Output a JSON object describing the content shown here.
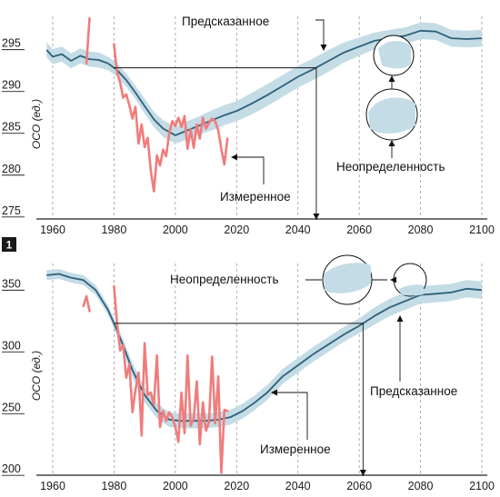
{
  "chart_data": [
    {
      "type": "line",
      "panel_label": "",
      "ylabel": "OCO (ед.)",
      "xlim": [
        1960,
        2100
      ],
      "ylim": [
        274,
        298
      ],
      "xticks": [
        1960,
        1980,
        2000,
        2020,
        2040,
        2060,
        2080,
        2100
      ],
      "yticks": [
        275,
        280,
        285,
        290,
        295
      ],
      "grid": "vertical dashed",
      "colors": {
        "predicted": "#2e5f78",
        "band": "#c3dce6",
        "measured": "#f07c7c"
      },
      "series": [
        {
          "name": "Предсказанное",
          "x": [
            1958,
            1960,
            1963,
            1966,
            1969,
            1972,
            1975,
            1978,
            1981,
            1984,
            1987,
            1990,
            1993,
            1996,
            2000,
            2004,
            2008,
            2012,
            2016,
            2020,
            2025,
            2030,
            2035,
            2040,
            2045,
            2050,
            2055,
            2060,
            2065,
            2070,
            2075,
            2080,
            2085,
            2090,
            2095,
            2100
          ],
          "y": [
            294.2,
            293.4,
            293.7,
            292.9,
            293.5,
            293.1,
            293.0,
            292.6,
            291.8,
            290.6,
            289.1,
            287.5,
            285.9,
            284.8,
            284.0,
            284.6,
            285.2,
            285.8,
            286.4,
            286.9,
            287.8,
            288.8,
            289.9,
            291.0,
            291.9,
            292.9,
            293.9,
            294.6,
            295.3,
            295.6,
            295.9,
            296.5,
            296.4,
            295.6,
            295.5,
            295.6
          ],
          "band_half_width": [
            0.9,
            0.9,
            0.9,
            0.9,
            0.9,
            0.9,
            0.9,
            0.8,
            0.8,
            0.8,
            0.8,
            0.9,
            0.9,
            1.0,
            1.0,
            1.1,
            1.1,
            1.2,
            1.2,
            1.2,
            1.3,
            1.3,
            1.3,
            1.3,
            1.3,
            1.3,
            1.2,
            1.1,
            1.0,
            1.0,
            1.0,
            1.0,
            1.0,
            1.0,
            1.0,
            1.0
          ]
        },
        {
          "name": "Измеренное",
          "segments": [
            {
              "x": [
                1971,
                1972
              ],
              "y": [
                292.6,
                298.0
              ]
            },
            {
              "x": [
                1980,
                1981,
                1982,
                1983,
                1984,
                1985,
                1986,
                1987,
                1988,
                1989,
                1990,
                1991,
                1992,
                1993,
                1994,
                1995,
                1996,
                1997,
                1998,
                1999,
                2000,
                2001,
                2002,
                2003,
                2004,
                2005,
                2006,
                2007,
                2008,
                2009,
                2010,
                2011,
                2012,
                2013,
                2014,
                2015,
                2016,
                2017
              ],
              "y": [
                294.9,
                291.5,
                290.3,
                288.5,
                288.9,
                287.6,
                286.0,
                287.4,
                283.0,
                285.3,
                282.6,
                283.7,
                279.7,
                277.3,
                281.6,
                280.4,
                282.3,
                281.5,
                284.2,
                285.7,
                285.1,
                286.1,
                285.0,
                286.3,
                282.4,
                284.7,
                282.5,
                285.3,
                283.6,
                286.1,
                284.8,
                285.5,
                286.0,
                285.7,
                284.6,
                282.4,
                280.5,
                283.6
              ]
            }
          ]
        }
      ],
      "annotations": {
        "predicted": "Предсказанное",
        "uncertainty": "Неопределенность",
        "measured": "Измеренное"
      }
    },
    {
      "type": "line",
      "panel_label": "1",
      "ylabel": "OCO (ед.)",
      "xlim": [
        1960,
        2100
      ],
      "ylim": [
        195,
        365
      ],
      "xticks": [
        1960,
        1980,
        2000,
        2020,
        2040,
        2060,
        2080,
        2100
      ],
      "yticks": [
        200,
        250,
        300,
        350
      ],
      "grid": "vertical dashed",
      "colors": {
        "predicted": "#2e5f78",
        "band": "#c3dce6",
        "measured": "#f07c7c"
      },
      "series": [
        {
          "name": "Предсказанное",
          "x": [
            1958,
            1962,
            1966,
            1970,
            1974,
            1978,
            1980,
            1983,
            1986,
            1990,
            1994,
            1998,
            2002,
            2006,
            2010,
            2014,
            2018,
            2022,
            2026,
            2030,
            2035,
            2040,
            2045,
            2050,
            2055,
            2060,
            2065,
            2070,
            2075,
            2080,
            2085,
            2090,
            2095,
            2100
          ],
          "y": [
            357,
            358,
            355,
            353,
            345,
            329,
            318,
            300,
            280,
            260,
            247,
            240,
            239,
            239,
            239,
            240,
            242,
            247,
            254,
            262,
            275,
            284,
            293,
            301,
            309,
            316,
            324,
            331,
            336,
            341,
            342,
            343,
            346,
            345
          ],
          "band_half_width": [
            4,
            4,
            4,
            4,
            4,
            4,
            4,
            5,
            6,
            6,
            6,
            6,
            6,
            6,
            6,
            6,
            6,
            6,
            6,
            6,
            6,
            6,
            6,
            6,
            6,
            6,
            7,
            7,
            7,
            7,
            7,
            7,
            7,
            7
          ]
        },
        {
          "name": "Измеренное",
          "segments": [
            {
              "x": [
                1970,
                1971,
                1972
              ],
              "y": [
                332,
                340,
                328
              ]
            },
            {
              "x": [
                1980,
                1981,
                1982,
                1983,
                1984,
                1985,
                1986,
                1987,
                1988,
                1989,
                1990,
                1991,
                1992,
                1993,
                1994,
                1995,
                1996,
                1997,
                1998,
                1999,
                2000,
                2001,
                2002,
                2003,
                2004,
                2005,
                2006,
                2007,
                2008,
                2009,
                2010,
                2011,
                2012,
                2013,
                2014,
                2015,
                2016,
                2017
              ],
              "y": [
                348,
                318,
                296,
                300,
                274,
                285,
                246,
                264,
                278,
                227,
                302,
                260,
                262,
                252,
                292,
                234,
                247,
                239,
                246,
                242,
                234,
                222,
                262,
                229,
                292,
                235,
                241,
                271,
                220,
                254,
                231,
                238,
                291,
                237,
                275,
                197,
                248,
                247
              ]
            }
          ]
        }
      ],
      "annotations": {
        "predicted": "Предсказанное",
        "uncertainty": "Неопределенность",
        "measured": "Измеренное"
      }
    }
  ]
}
